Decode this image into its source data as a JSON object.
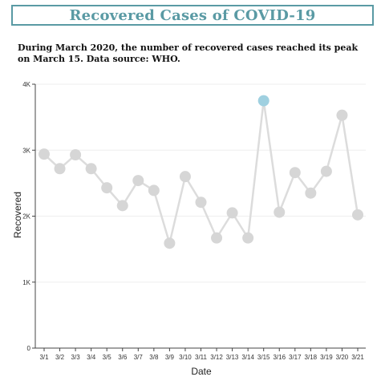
{
  "title": "Recovered Cases of COVID-19",
  "subtitle": "During March 2020, the number of recovered cases reached its peak on March 15. Data source: WHO.",
  "colors": {
    "title": "#5a9aa4",
    "line": "#dcdcdc",
    "point": "#d6d6d6",
    "highlight": "#9fd0e0",
    "grid": "#eeeeee",
    "axis": "#444444"
  },
  "chart_data": {
    "type": "line",
    "xlabel": "Date",
    "ylabel": "Recovered",
    "ylim": [
      0,
      4000
    ],
    "yticks": [
      0,
      1000,
      2000,
      3000,
      4000
    ],
    "ytick_labels": [
      "0",
      "1K",
      "2K",
      "3K",
      "4K"
    ],
    "grid": true,
    "categories": [
      "3/1",
      "3/2",
      "3/3",
      "3/4",
      "3/5",
      "3/6",
      "3/7",
      "3/8",
      "3/9",
      "3/10",
      "3/11",
      "3/12",
      "3/13",
      "3/14",
      "3/15",
      "3/16",
      "3/17",
      "3/18",
      "3/19",
      "3/20",
      "3/21"
    ],
    "values": [
      2940,
      2720,
      2930,
      2720,
      2430,
      2160,
      2540,
      2390,
      1590,
      2600,
      2210,
      1670,
      2050,
      1670,
      3750,
      2060,
      2660,
      2350,
      2680,
      3530,
      2020
    ],
    "highlight": "3/15"
  }
}
